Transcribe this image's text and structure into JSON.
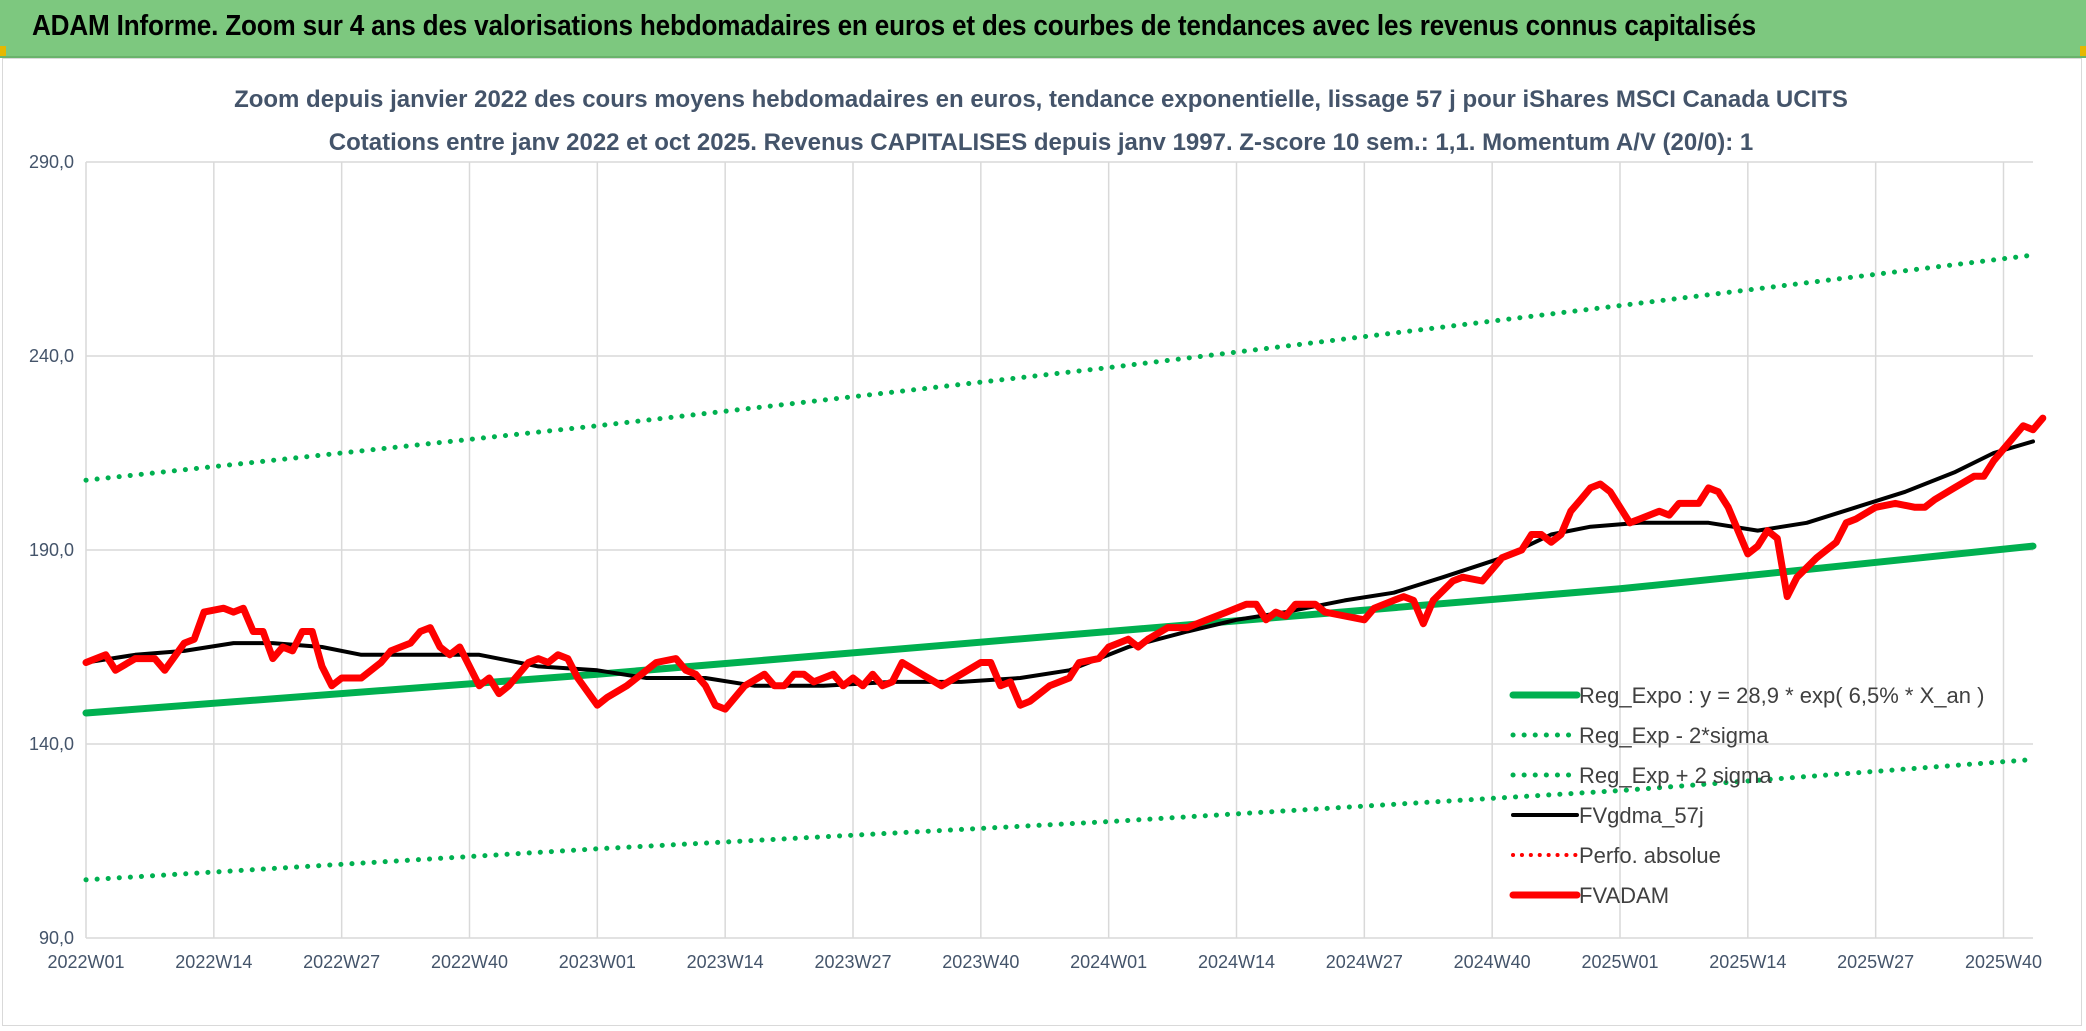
{
  "header": {
    "title": "ADAM Informe. Zoom sur 4 ans des valorisations hebdomadaires en euros et des courbes de tendances avec les revenus connus capitalisés"
  },
  "chart_data": {
    "type": "line",
    "title_lines": [
      "Zoom depuis janvier 2022 des cours moyens hebdomadaires en euros, tendance exponentielle, lissage 57 j pour iShares MSCI Canada UCITS",
      "Cotations entre janv 2022 et oct 2025. Revenus CAPITALISES depuis janv 1997. Z-score 10 sem.: 1,1. Momentum A/V (20/0): 1"
    ],
    "xlabel": "",
    "ylabel": "",
    "ylim": [
      90,
      290
    ],
    "y_ticks": [
      "290,0",
      "240,0",
      "190,0",
      "140,0",
      "90,0"
    ],
    "x_ticks": [
      "2022W01",
      "2022W14",
      "2022W27",
      "2022W40",
      "2023W01",
      "2023W14",
      "2023W27",
      "2023W40",
      "2024W01",
      "2024W14",
      "2024W27",
      "2024W40",
      "2025W01",
      "2025W14",
      "2025W27",
      "2025W40"
    ],
    "x_range_weeks": [
      0,
      198
    ],
    "grid": true,
    "legend_position": "bottom-right",
    "series": [
      {
        "name": "Reg_Expo : y = 28,9 * exp( 6,5% *  X_an )",
        "color": "#00b050",
        "style": "solid",
        "width": 7,
        "points": [
          [
            0,
            148
          ],
          [
            52,
            158
          ],
          [
            104,
            169
          ],
          [
            156,
            180
          ],
          [
            198,
            191
          ]
        ]
      },
      {
        "name": "Reg_Exp - 2*sigma",
        "color": "#00b050",
        "style": "dotted",
        "width": 5,
        "points": [
          [
            0,
            105
          ],
          [
            52,
            113
          ],
          [
            104,
            120
          ],
          [
            156,
            128
          ],
          [
            198,
            136
          ]
        ]
      },
      {
        "name": "Reg_Exp + 2 sigma",
        "color": "#00b050",
        "style": "dotted",
        "width": 5,
        "points": [
          [
            0,
            208
          ],
          [
            52,
            222
          ],
          [
            104,
            237
          ],
          [
            156,
            253
          ],
          [
            198,
            266
          ]
        ]
      },
      {
        "name": "FVgdma_57j",
        "color": "#000000",
        "style": "solid",
        "width": 4,
        "points": [
          [
            0,
            161
          ],
          [
            5,
            163
          ],
          [
            10,
            164
          ],
          [
            15,
            166
          ],
          [
            19,
            166
          ],
          [
            24,
            165
          ],
          [
            28,
            163
          ],
          [
            33,
            163
          ],
          [
            40,
            163
          ],
          [
            46,
            160
          ],
          [
            52,
            159
          ],
          [
            57,
            157
          ],
          [
            63,
            157
          ],
          [
            68,
            155
          ],
          [
            75,
            155
          ],
          [
            82,
            156
          ],
          [
            89,
            156
          ],
          [
            95,
            157
          ],
          [
            100,
            159
          ],
          [
            106,
            165
          ],
          [
            112,
            169
          ],
          [
            117,
            172
          ],
          [
            122,
            174
          ],
          [
            128,
            177
          ],
          [
            133,
            179
          ],
          [
            138,
            183
          ],
          [
            144,
            188
          ],
          [
            149,
            194
          ],
          [
            153,
            196
          ],
          [
            158,
            197
          ],
          [
            165,
            197
          ],
          [
            170,
            195
          ],
          [
            175,
            197
          ],
          [
            180,
            201
          ],
          [
            185,
            205
          ],
          [
            190,
            210
          ],
          [
            194,
            215
          ],
          [
            198,
            218
          ]
        ]
      },
      {
        "name": "Perfo. absolue",
        "color": "#ff0000",
        "style": "dotted",
        "width": 4,
        "points": []
      },
      {
        "name": "FVADAM",
        "color": "#ff0000",
        "style": "solid",
        "width": 7,
        "points": [
          [
            0,
            161
          ],
          [
            2,
            163
          ],
          [
            3,
            159
          ],
          [
            5,
            162
          ],
          [
            7,
            162
          ],
          [
            8,
            159
          ],
          [
            10,
            166
          ],
          [
            11,
            167
          ],
          [
            12,
            174
          ],
          [
            14,
            175
          ],
          [
            15,
            174
          ],
          [
            16,
            175
          ],
          [
            17,
            169
          ],
          [
            18,
            169
          ],
          [
            19,
            162
          ],
          [
            20,
            165
          ],
          [
            21,
            164
          ],
          [
            22,
            169
          ],
          [
            23,
            169
          ],
          [
            24,
            160
          ],
          [
            25,
            155
          ],
          [
            26,
            157
          ],
          [
            28,
            157
          ],
          [
            30,
            161
          ],
          [
            31,
            164
          ],
          [
            33,
            166
          ],
          [
            34,
            169
          ],
          [
            35,
            170
          ],
          [
            36,
            165
          ],
          [
            37,
            163
          ],
          [
            38,
            165
          ],
          [
            40,
            155
          ],
          [
            41,
            157
          ],
          [
            42,
            153
          ],
          [
            43,
            155
          ],
          [
            45,
            161
          ],
          [
            46,
            162
          ],
          [
            47,
            161
          ],
          [
            48,
            163
          ],
          [
            49,
            162
          ],
          [
            50,
            157
          ],
          [
            52,
            150
          ],
          [
            53,
            152
          ],
          [
            55,
            155
          ],
          [
            57,
            159
          ],
          [
            58,
            161
          ],
          [
            60,
            162
          ],
          [
            61,
            159
          ],
          [
            62,
            158
          ],
          [
            63,
            155
          ],
          [
            64,
            150
          ],
          [
            65,
            149
          ],
          [
            67,
            155
          ],
          [
            69,
            158
          ],
          [
            70,
            155
          ],
          [
            71,
            155
          ],
          [
            72,
            158
          ],
          [
            73,
            158
          ],
          [
            74,
            156
          ],
          [
            75,
            157
          ],
          [
            76,
            158
          ],
          [
            77,
            155
          ],
          [
            78,
            157
          ],
          [
            79,
            155
          ],
          [
            80,
            158
          ],
          [
            81,
            155
          ],
          [
            82,
            156
          ],
          [
            83,
            161
          ],
          [
            85,
            158
          ],
          [
            87,
            155
          ],
          [
            89,
            158
          ],
          [
            91,
            161
          ],
          [
            92,
            161
          ],
          [
            93,
            155
          ],
          [
            94,
            156
          ],
          [
            95,
            150
          ],
          [
            96,
            151
          ],
          [
            98,
            155
          ],
          [
            100,
            157
          ],
          [
            101,
            161
          ],
          [
            103,
            162
          ],
          [
            104,
            165
          ],
          [
            106,
            167
          ],
          [
            107,
            165
          ],
          [
            108,
            167
          ],
          [
            110,
            170
          ],
          [
            112,
            170
          ],
          [
            114,
            172
          ],
          [
            116,
            174
          ],
          [
            118,
            176
          ],
          [
            119,
            176
          ],
          [
            120,
            172
          ],
          [
            121,
            174
          ],
          [
            122,
            173
          ],
          [
            123,
            176
          ],
          [
            124,
            176
          ],
          [
            125,
            176
          ],
          [
            126,
            174
          ],
          [
            128,
            173
          ],
          [
            130,
            172
          ],
          [
            131,
            175
          ],
          [
            133,
            177
          ],
          [
            134,
            178
          ],
          [
            135,
            177
          ],
          [
            136,
            171
          ],
          [
            137,
            177
          ],
          [
            139,
            182
          ],
          [
            140,
            183
          ],
          [
            142,
            182
          ],
          [
            144,
            188
          ],
          [
            146,
            190
          ],
          [
            147,
            194
          ],
          [
            148,
            194
          ],
          [
            149,
            192
          ],
          [
            150,
            194
          ],
          [
            151,
            200
          ],
          [
            152,
            203
          ],
          [
            153,
            206
          ],
          [
            154,
            207
          ],
          [
            155,
            205
          ],
          [
            156,
            201
          ],
          [
            157,
            197
          ],
          [
            158,
            198
          ],
          [
            159,
            199
          ],
          [
            160,
            200
          ],
          [
            161,
            199
          ],
          [
            162,
            202
          ],
          [
            163,
            202
          ],
          [
            164,
            202
          ],
          [
            165,
            206
          ],
          [
            166,
            205
          ],
          [
            167,
            201
          ],
          [
            168,
            195
          ],
          [
            169,
            189
          ],
          [
            170,
            191
          ],
          [
            171,
            195
          ],
          [
            172,
            193
          ],
          [
            173,
            178
          ],
          [
            174,
            183
          ],
          [
            176,
            188
          ],
          [
            178,
            192
          ],
          [
            179,
            197
          ],
          [
            180,
            198
          ],
          [
            182,
            201
          ],
          [
            184,
            202
          ],
          [
            186,
            201
          ],
          [
            187,
            201
          ],
          [
            188,
            203
          ],
          [
            190,
            206
          ],
          [
            192,
            209
          ],
          [
            193,
            209
          ],
          [
            194,
            213
          ],
          [
            195,
            216
          ],
          [
            196,
            219
          ],
          [
            197,
            222
          ],
          [
            198,
            221
          ],
          [
            199,
            224
          ]
        ]
      }
    ]
  }
}
